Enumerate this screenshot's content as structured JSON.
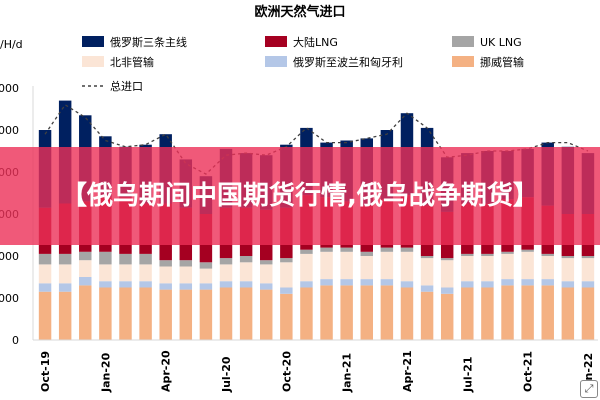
{
  "chart_data": {
    "type": "bar",
    "title": "欧洲天然气进口",
    "ylabel_fragment": "/H/d",
    "y_tick_labels": [
      "000",
      "000",
      "000",
      "000",
      "000",
      "000",
      "0"
    ],
    "yticks": [
      0,
      1000,
      2000,
      3000,
      4000,
      5000,
      6000
    ],
    "ylim": [
      0,
      6000
    ],
    "categories": [
      "Oct-19",
      "Nov-19",
      "Dec-19",
      "Jan-20",
      "Feb-20",
      "Mar-20",
      "Apr-20",
      "May-20",
      "Jun-20",
      "Jul-20",
      "Aug-20",
      "Sep-20",
      "Oct-20",
      "Nov-20",
      "Dec-20",
      "Jan-21",
      "Feb-21",
      "Mar-21",
      "Apr-21",
      "May-21",
      "Jun-21",
      "Jul-21",
      "Aug-21",
      "Sep-21",
      "Oct-21",
      "Nov-21",
      "Dec-21",
      "Jan-22"
    ],
    "x_tick_labels": [
      {
        "index": 0,
        "label": "Oct-19"
      },
      {
        "index": 3,
        "label": "Jan-20"
      },
      {
        "index": 6,
        "label": "Apr-20"
      },
      {
        "index": 9,
        "label": "Jul-20"
      },
      {
        "index": 12,
        "label": "Oct-20"
      },
      {
        "index": 15,
        "label": "Jan-21"
      },
      {
        "index": 18,
        "label": "Apr-21"
      },
      {
        "index": 21,
        "label": "Jul-21"
      },
      {
        "index": 24,
        "label": "Oct-21"
      },
      {
        "index": 27,
        "label": "Jan-22"
      }
    ],
    "series": [
      {
        "name": "挪威管输",
        "color": "#f4b183",
        "values": [
          1150,
          1150,
          1300,
          1250,
          1250,
          1250,
          1200,
          1200,
          1200,
          1250,
          1250,
          1200,
          1100,
          1250,
          1300,
          1300,
          1300,
          1300,
          1250,
          1150,
          1100,
          1250,
          1250,
          1300,
          1300,
          1300,
          1250,
          1250
        ]
      },
      {
        "name": "俄罗斯至波兰和匈牙利",
        "color": "#b4c7e7",
        "values": [
          200,
          200,
          200,
          150,
          150,
          150,
          150,
          150,
          150,
          150,
          150,
          150,
          150,
          150,
          150,
          150,
          150,
          150,
          150,
          150,
          150,
          150,
          150,
          150,
          150,
          150,
          150,
          150
        ]
      },
      {
        "name": "北非管输",
        "color": "#fbe5d6",
        "values": [
          450,
          450,
          400,
          400,
          400,
          400,
          400,
          400,
          350,
          400,
          450,
          450,
          600,
          650,
          650,
          650,
          550,
          650,
          700,
          650,
          650,
          600,
          600,
          600,
          650,
          550,
          550,
          550
        ]
      },
      {
        "name": "UK LNG",
        "color": "#a5a5a5",
        "values": [
          250,
          250,
          200,
          300,
          250,
          250,
          150,
          150,
          150,
          150,
          150,
          100,
          100,
          100,
          100,
          100,
          100,
          100,
          100,
          50,
          50,
          50,
          50,
          50,
          50,
          50,
          50,
          50
        ]
      },
      {
        "name": "大陆LNG",
        "color": "#a50021",
        "values": [
          1100,
          1200,
          1200,
          1300,
          1350,
          1200,
          1350,
          1250,
          1150,
          1200,
          1150,
          1200,
          1200,
          1300,
          1200,
          1100,
          1100,
          1150,
          1250,
          1200,
          1100,
          1200,
          1200,
          1250,
          1250,
          1150,
          1000,
          1000
        ]
      },
      {
        "name": "俄罗斯三条主线",
        "color": "#002060",
        "values": [
          1850,
          2450,
          2050,
          1450,
          1200,
          1400,
          1650,
          1150,
          900,
          1400,
          1300,
          1300,
          1500,
          1600,
          1300,
          1450,
          1600,
          1650,
          1950,
          1850,
          1300,
          1200,
          1250,
          1150,
          1150,
          1500,
          1600,
          1450
        ]
      }
    ],
    "dashed_series": {
      "name": "总进口",
      "color": "#404040",
      "values": [
        4900,
        5600,
        5300,
        4750,
        4600,
        4650,
        4900,
        4200,
        3950,
        4400,
        4450,
        4400,
        4600,
        5050,
        4700,
        4700,
        4800,
        4900,
        5400,
        5050,
        4350,
        4400,
        4500,
        4500,
        4550,
        4700,
        4700,
        4500
      ]
    },
    "legend": [
      {
        "label": "俄罗斯三条主线",
        "color": "#002060",
        "style": "box"
      },
      {
        "label": "大陆LNG",
        "color": "#a50021",
        "style": "box"
      },
      {
        "label": "UK LNG",
        "color": "#a5a5a5",
        "style": "box"
      },
      {
        "label": "北非管输",
        "color": "#fbe5d6",
        "style": "box"
      },
      {
        "label": "俄罗斯至波兰和匈牙利",
        "color": "#b4c7e7",
        "style": "box"
      },
      {
        "label": "挪威管输",
        "color": "#f4b183",
        "style": "box"
      },
      {
        "label": "总进口",
        "color": "#404040",
        "style": "dash"
      }
    ],
    "legend_placement": "top",
    "grid": false
  },
  "banner": {
    "text": "【俄乌期间中国期货行情,俄乌战争期货】",
    "color": "#ec3058"
  },
  "corner_icon": {
    "name": "expand-icon",
    "glyph": "⤢"
  }
}
